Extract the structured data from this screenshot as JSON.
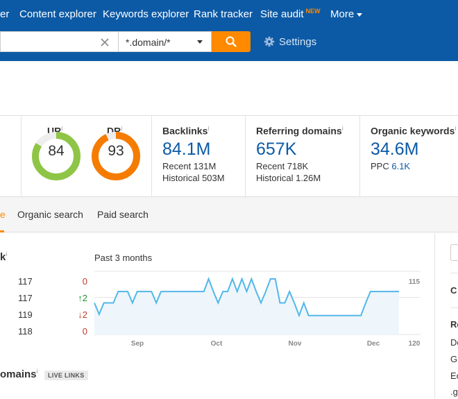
{
  "nav": {
    "items": [
      "er",
      "Content explorer",
      "Keywords explorer",
      "Rank tracker",
      "Site audit",
      "More"
    ],
    "new_badge": "NEW"
  },
  "search": {
    "mode": "*.domain/*",
    "settings_label": "Settings"
  },
  "metrics": {
    "ur": {
      "label": "UR",
      "info": "i",
      "value": "84",
      "score": 84,
      "color": "#8fc546"
    },
    "dr": {
      "label": "DR",
      "info": "i",
      "value": "93",
      "score": 93,
      "color": "#f57c00"
    },
    "backlinks": {
      "title": "Backlinks",
      "info": "i",
      "value": "84.1M",
      "recent": "Recent 131M",
      "historical": "Historical 503M"
    },
    "referring_domains": {
      "title": "Referring domains",
      "info": "i",
      "value": "657K",
      "recent": "Recent 718K",
      "historical": "Historical 1.26M"
    },
    "organic_keywords": {
      "title": "Organic keywords",
      "info": "i",
      "value": "34.6M",
      "ppc_label": "PPC",
      "ppc_value": "6.1K"
    }
  },
  "tabs": {
    "active_fragment": "e",
    "organic": "Organic search",
    "paid": "Paid search"
  },
  "rank": {
    "title_fragment": "k",
    "info": "i",
    "rows": [
      {
        "value": "117",
        "delta": "0",
        "dir": "none"
      },
      {
        "value": "117",
        "delta": "↑2",
        "dir": "up"
      },
      {
        "value": "119",
        "delta": "↓2",
        "dir": "down"
      },
      {
        "value": "118",
        "delta": "0",
        "dir": "none"
      }
    ]
  },
  "chart_data": {
    "type": "line",
    "title": "Past 3 months",
    "x_ticks": [
      "Sep",
      "Oct",
      "Nov",
      "Dec"
    ],
    "y_ticks": [
      "115",
      "120"
    ],
    "ylim": [
      115,
      120
    ],
    "y_inverted": true,
    "color": "#52b7e8",
    "values": [
      117.5,
      118.4,
      117.5,
      117.5,
      117.5,
      116.6,
      116.6,
      116.6,
      117.5,
      116.6,
      116.6,
      116.6,
      116.6,
      117.5,
      116.6,
      116.6,
      116.6,
      116.6,
      116.6,
      116.6,
      116.6,
      116.6,
      116.6,
      116.6,
      115.6,
      116.6,
      117.5,
      116.6,
      116.6,
      115.6,
      116.6,
      115.6,
      116.6,
      115.6,
      116.6,
      117.5,
      116.6,
      115.6,
      115.6,
      117.5,
      117.5,
      116.6,
      117.5,
      118.5,
      117.5,
      118.5,
      118.5,
      118.5,
      118.5,
      118.5,
      118.5,
      118.5,
      118.5,
      118.5,
      118.5,
      118.5,
      118.5,
      117.5,
      116.6,
      116.6,
      116.6,
      116.6,
      116.6,
      116.6,
      116.6
    ]
  },
  "right_col": {
    "items": [
      "C",
      "Re",
      "De",
      "G",
      "Ec",
      ".g"
    ]
  },
  "domains": {
    "title_fragment": "omains",
    "info": "i",
    "badge": "LIVE LINKS"
  }
}
